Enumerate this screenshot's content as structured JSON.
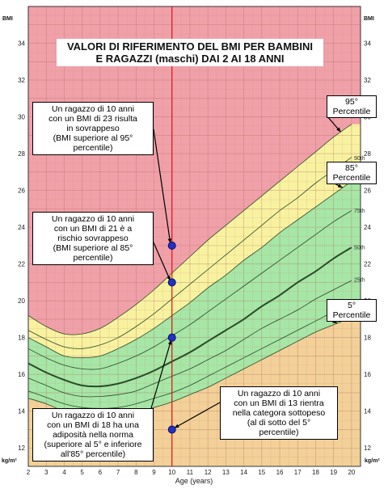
{
  "chart_data": {
    "type": "line",
    "title_lines": [
      "VALORI DI RIFERIMENTO DEL BMI PER BAMBINI",
      "E RAGAZZI (maschi) DAI 2 AI 18 ANNI"
    ],
    "xlabel": "Age (years)",
    "ylabel_top": "BMI",
    "ylabel_bottom": "kg/m²",
    "xlim": [
      2,
      20.5
    ],
    "ylim": [
      11,
      36
    ],
    "x_ticks": [
      2,
      3,
      4,
      5,
      6,
      7,
      8,
      9,
      10,
      11,
      12,
      13,
      14,
      15,
      16,
      17,
      18,
      19,
      20
    ],
    "y_ticks": [
      12,
      14,
      16,
      18,
      20,
      22,
      24,
      26,
      28,
      30,
      32,
      34
    ],
    "age": [
      2,
      3,
      4,
      5,
      6,
      7,
      8,
      9,
      10,
      11,
      12,
      13,
      14,
      15,
      16,
      17,
      18,
      19,
      20
    ],
    "series": [
      {
        "name": "5th",
        "values": [
          14.7,
          14.4,
          14.0,
          13.8,
          13.75,
          13.8,
          13.95,
          14.2,
          14.5,
          14.9,
          15.3,
          15.8,
          16.3,
          16.8,
          17.3,
          17.8,
          18.3,
          18.7,
          19.1
        ]
      },
      {
        "name": "10th",
        "values": [
          15.1,
          14.75,
          14.4,
          14.2,
          14.15,
          14.2,
          14.4,
          14.7,
          15.0,
          15.4,
          15.9,
          16.4,
          16.9,
          17.4,
          17.9,
          18.4,
          18.9,
          19.4,
          19.8
        ]
      },
      {
        "name": "25th",
        "values": [
          15.8,
          15.4,
          15.0,
          14.8,
          14.8,
          14.9,
          15.1,
          15.5,
          15.9,
          16.3,
          16.8,
          17.3,
          17.9,
          18.5,
          19.0,
          19.5,
          20.1,
          20.6,
          21.1
        ]
      },
      {
        "name": "50th",
        "values": [
          16.6,
          16.1,
          15.7,
          15.4,
          15.35,
          15.5,
          15.8,
          16.2,
          16.7,
          17.2,
          17.8,
          18.4,
          19.0,
          19.7,
          20.3,
          21.0,
          21.6,
          22.3,
          22.9
        ]
      },
      {
        "name": "75th",
        "values": [
          17.4,
          16.9,
          16.5,
          16.3,
          16.3,
          16.6,
          17.0,
          17.5,
          18.1,
          18.7,
          19.4,
          20.1,
          20.8,
          21.5,
          22.2,
          22.9,
          23.6,
          24.3,
          24.9
        ]
      },
      {
        "name": "85th",
        "values": [
          18.0,
          17.5,
          17.0,
          16.9,
          17.0,
          17.4,
          17.9,
          18.5,
          19.2,
          19.9,
          20.7,
          21.4,
          22.2,
          22.9,
          23.7,
          24.4,
          25.1,
          25.8,
          26.5
        ]
      },
      {
        "name": "90th",
        "values": [
          18.4,
          17.9,
          17.5,
          17.4,
          17.6,
          18.0,
          18.6,
          19.3,
          20.1,
          20.9,
          21.7,
          22.5,
          23.3,
          24.1,
          24.9,
          25.6,
          26.4,
          27.1,
          27.8
        ]
      },
      {
        "name": "95th",
        "values": [
          19.2,
          18.6,
          18.2,
          18.2,
          18.5,
          19.1,
          19.8,
          20.6,
          21.5,
          22.4,
          23.3,
          24.1,
          24.9,
          25.7,
          26.5,
          27.3,
          28.1,
          28.9,
          29.6
        ]
      }
    ],
    "markers": [
      {
        "x": 10,
        "y": 23
      },
      {
        "x": 10,
        "y": 21
      },
      {
        "x": 10,
        "y": 18
      },
      {
        "x": 10,
        "y": 13
      }
    ],
    "reference_line_x": 10,
    "zones": [
      {
        "name": "sovrappeso",
        "color": "#f0a0a8"
      },
      {
        "name": "rischio sovrappeso",
        "color": "#f8f2a0"
      },
      {
        "name": "normale",
        "color": "#a6e6a6"
      },
      {
        "name": "sottopeso",
        "color": "#f2d098"
      }
    ],
    "grid": true,
    "percentile_labels": [
      {
        "num": "95",
        "word": "Percentile"
      },
      {
        "num": "85",
        "word": "Percentile"
      },
      {
        "num": "5",
        "word": "Percentile"
      }
    ],
    "line_labels": [
      "90th",
      "75th",
      "50th",
      "25th",
      "10th"
    ],
    "annotations": [
      {
        "lines": [
          "Un ragazzo di 10 anni",
          "con un BMI di 23 risulta",
          "in sovrappeso",
          "(BMI superiore al 95°",
          "percentile)"
        ]
      },
      {
        "lines": [
          "Un ragazzo di 10 anni",
          "con un BMI di 21 è a",
          "rischio sovrappeso",
          "(BMI superiore al 85°",
          "percentile)"
        ]
      },
      {
        "lines": [
          "Un ragazzo di 10 anni",
          "con un BMI di 18 ha una",
          "adiposità nella norma",
          "(superiore al 5° e inferiore",
          "all'85° percentile)"
        ]
      },
      {
        "lines": [
          "Un ragazzo di 10 anni",
          "con un BMI di 13 rientra",
          "nella categora sottopeso",
          "(al di sotto del 5°",
          "percentile)"
        ]
      }
    ]
  }
}
